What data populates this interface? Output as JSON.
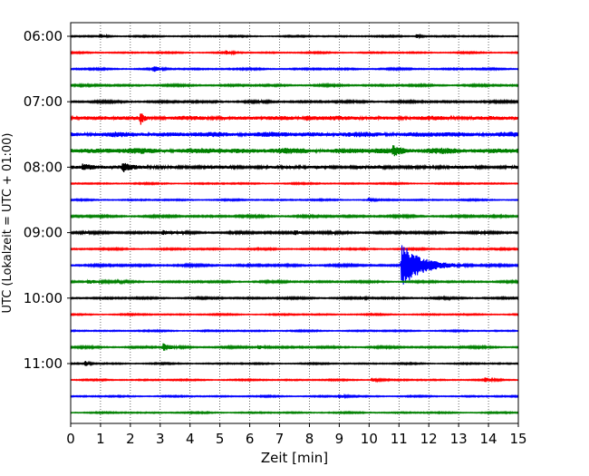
{
  "chart_data": {
    "type": "line",
    "subtype": "helicorder",
    "xlabel": "Zeit  [min]",
    "ylabel": "UTC (Lokalzeit = UTC + 01:00)",
    "xlim": [
      0,
      15
    ],
    "x_ticks": [
      "0",
      "1",
      "2",
      "3",
      "4",
      "5",
      "6",
      "7",
      "8",
      "9",
      "10",
      "11",
      "12",
      "13",
      "14",
      "15"
    ],
    "y_tick_labels": [
      "06:00",
      "07:00",
      "08:00",
      "09:00",
      "10:00",
      "11:00"
    ],
    "grid": "vertical dotted",
    "trace_colors_cycle": [
      "#000000",
      "#ff0000",
      "#0000ff",
      "#008000"
    ],
    "traces": [
      {
        "start": "06:00",
        "color": "#000000",
        "noise": 0.6,
        "events": [
          {
            "t": 1.0,
            "amp": 2.5,
            "dur": 0.15
          },
          {
            "t": 11.6,
            "amp": 2.0,
            "dur": 0.15
          }
        ]
      },
      {
        "start": "06:15",
        "color": "#ff0000",
        "noise": 0.6,
        "events": [
          {
            "t": 5.2,
            "amp": 2.0,
            "dur": 0.15
          }
        ]
      },
      {
        "start": "06:30",
        "color": "#0000ff",
        "noise": 0.7,
        "events": [
          {
            "t": 2.8,
            "amp": 3.0,
            "dur": 0.15
          }
        ]
      },
      {
        "start": "06:45",
        "color": "#008000",
        "noise": 0.8,
        "events": []
      },
      {
        "start": "07:00",
        "color": "#000000",
        "noise": 0.9,
        "events": []
      },
      {
        "start": "07:15",
        "color": "#ff0000",
        "noise": 1.8,
        "events": [
          {
            "t": 2.35,
            "amp": 6.0,
            "dur": 0.1
          },
          {
            "t": 7.9,
            "amp": 2.5,
            "dur": 0.3
          }
        ]
      },
      {
        "start": "07:30",
        "color": "#0000ff",
        "noise": 2.2,
        "events": []
      },
      {
        "start": "07:45",
        "color": "#008000",
        "noise": 2.5,
        "events": [
          {
            "t": 10.8,
            "amp": 4.0,
            "dur": 0.3
          }
        ]
      },
      {
        "start": "08:00",
        "color": "#000000",
        "noise": 1.4,
        "events": [
          {
            "t": 0.4,
            "amp": 3.0,
            "dur": 0.5
          },
          {
            "t": 1.75,
            "amp": 4.5,
            "dur": 0.25
          }
        ]
      },
      {
        "start": "08:15",
        "color": "#ff0000",
        "noise": 0.6,
        "events": []
      },
      {
        "start": "08:30",
        "color": "#0000ff",
        "noise": 0.6,
        "events": [
          {
            "t": 10.0,
            "amp": 2.0,
            "dur": 0.1
          }
        ]
      },
      {
        "start": "08:45",
        "color": "#008000",
        "noise": 0.9,
        "events": []
      },
      {
        "start": "09:00",
        "color": "#000000",
        "noise": 1.0,
        "events": [
          {
            "t": 3.1,
            "amp": 2.0,
            "dur": 0.2
          },
          {
            "t": 7.5,
            "amp": 2.5,
            "dur": 0.2
          }
        ]
      },
      {
        "start": "09:15",
        "color": "#ff0000",
        "noise": 0.7,
        "events": []
      },
      {
        "start": "09:30",
        "color": "#0000ff",
        "noise": 0.9,
        "events": [
          {
            "t": 11.1,
            "amp": 24.0,
            "dur": 0.6
          }
        ]
      },
      {
        "start": "09:45",
        "color": "#008000",
        "noise": 0.8,
        "events": [
          {
            "t": 0.6,
            "amp": 2.0,
            "dur": 0.4
          }
        ]
      },
      {
        "start": "10:00",
        "color": "#000000",
        "noise": 0.8,
        "events": [
          {
            "t": 9.7,
            "amp": 2.0,
            "dur": 0.1
          }
        ]
      },
      {
        "start": "10:15",
        "color": "#ff0000",
        "noise": 0.6,
        "events": []
      },
      {
        "start": "10:30",
        "color": "#0000ff",
        "noise": 0.6,
        "events": []
      },
      {
        "start": "10:45",
        "color": "#008000",
        "noise": 0.8,
        "events": [
          {
            "t": 3.1,
            "amp": 4.0,
            "dur": 0.25
          },
          {
            "t": 6.3,
            "amp": 2.0,
            "dur": 0.2
          }
        ]
      },
      {
        "start": "11:00",
        "color": "#000000",
        "noise": 0.6,
        "events": [
          {
            "t": 0.5,
            "amp": 2.5,
            "dur": 0.1
          }
        ]
      },
      {
        "start": "11:15",
        "color": "#ff0000",
        "noise": 0.6,
        "events": [
          {
            "t": 10.1,
            "amp": 2.0,
            "dur": 0.2
          },
          {
            "t": 13.9,
            "amp": 2.0,
            "dur": 0.2
          }
        ]
      },
      {
        "start": "11:30",
        "color": "#0000ff",
        "noise": 0.6,
        "events": [
          {
            "t": 9.0,
            "amp": 2.0,
            "dur": 0.2
          }
        ]
      },
      {
        "start": "11:45",
        "color": "#008000",
        "noise": 0.6,
        "events": []
      }
    ]
  }
}
